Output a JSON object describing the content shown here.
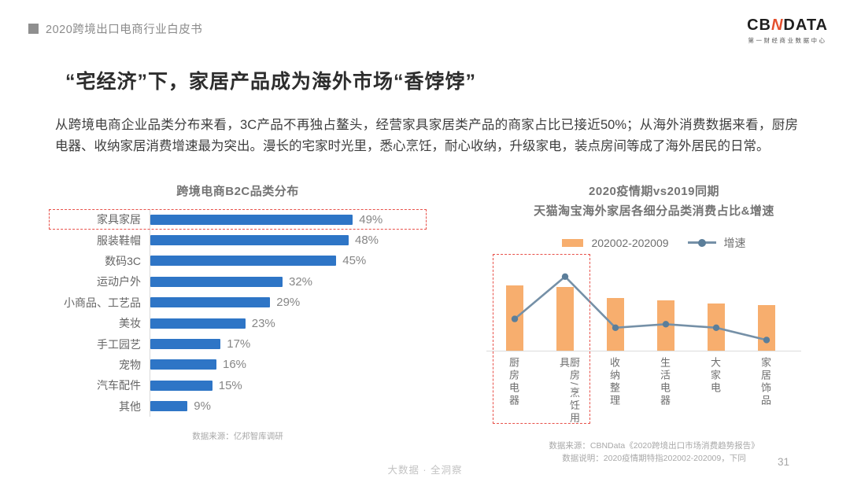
{
  "header": {
    "doc_title": "2020跨境出口电商行业白皮书"
  },
  "logo": {
    "wordmark_part1": "CB",
    "wordmark_n": "N",
    "wordmark_part2": "DATA",
    "subtitle": "第一财经商业数据中心",
    "n_color": "#E4502E"
  },
  "page": {
    "title": "“宅经济”下，家居产品成为海外市场“香饽饽”",
    "paragraph": "从跨境电商企业品类分布来看，3C产品不再独占鳌头，经营家具家居类产品的商家占比已接近50%；从海外消费数据来看，厨房电器、收纳家居消费增速最为突出。漫长的宅家时光里，悉心烹饪，耐心收纳，升级家电，装点房间等成了海外居民的日常。"
  },
  "chart_data": [
    {
      "type": "bar",
      "orientation": "horizontal",
      "title": "跨境电商B2C品类分布",
      "categories": [
        "家具家居",
        "服装鞋帽",
        "数码3C",
        "运动户外",
        "小商品、工艺品",
        "美妆",
        "手工园艺",
        "宠物",
        "汽车配件",
        "其他"
      ],
      "values": [
        49,
        48,
        45,
        32,
        29,
        23,
        17,
        16,
        15,
        9
      ],
      "value_labels": [
        "49%",
        "48%",
        "45%",
        "32%",
        "29%",
        "23%",
        "17%",
        "16%",
        "15%",
        "9%"
      ],
      "unit": "%",
      "xlim": [
        0,
        60
      ],
      "grid": false,
      "bar_color": "#2E75C6",
      "highlighted_category": "家具家居",
      "highlight_box_color": "#E8514A",
      "source": "数据来源：亿邦智库调研"
    },
    {
      "type": "bar",
      "subtype": "combo-bar-line",
      "title_line1": "2020疫情期vs2019同期",
      "title_line2": "天猫淘宝海外家居各细分品类消费占比&增速",
      "categories": [
        "厨房电器",
        "厨房/烹饪用具",
        "收纳整理",
        "生活电器",
        "大家电",
        "家居饰品"
      ],
      "series": [
        {
          "name": "202002-202009",
          "type": "bar",
          "color": "#F7AE6E",
          "values_rel_pct": [
            74,
            72,
            59,
            57,
            53,
            51
          ]
        },
        {
          "name": "增速",
          "type": "line",
          "color": "#7590A7",
          "marker_color": "#5B7E9A",
          "values_rel_pct": [
            37,
            85,
            27,
            31,
            27,
            13
          ]
        }
      ],
      "y_axis_labels_shown": false,
      "legend_position": "top",
      "grid": false,
      "highlighted_categories": [
        "厨房电器",
        "厨房/烹饪用具"
      ],
      "highlight_box_color": "#E8514A",
      "sources": [
        "数据来源：CBNData《2020跨境出口市场消费趋势报告》",
        "数据说明：2020疫情期特指202002-202009，下同"
      ]
    }
  ],
  "footer": {
    "slogan": "大数据 · 全洞察",
    "page_number": "31"
  }
}
